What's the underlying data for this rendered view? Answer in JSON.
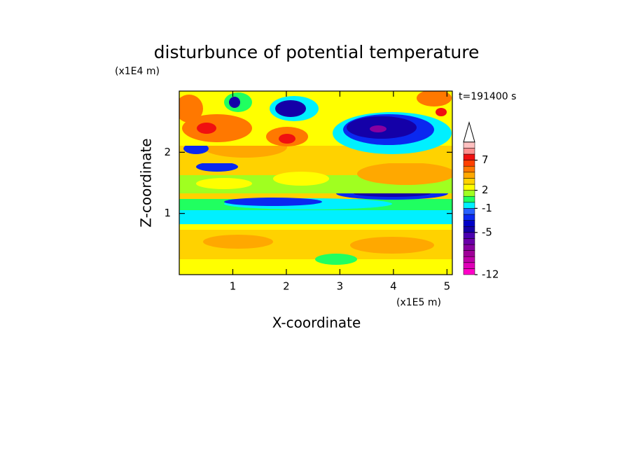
{
  "chart_data": {
    "type": "contour",
    "title": "disturbunce of potential temperature",
    "x_label": "X-coordinate",
    "y_label": "Z-coordinate",
    "x_unit": "(x1E5 m)",
    "y_unit": "(x1E4 m)",
    "time_label": "t=191400 s",
    "xlim": [
      0,
      5.1
    ],
    "ylim": [
      0,
      3.0
    ],
    "xticks": [
      1,
      2,
      3,
      4,
      5
    ],
    "yticks": [
      1,
      2
    ],
    "colorbar": {
      "clim": [
        -12,
        10
      ],
      "ticks": [
        -12,
        -5,
        -1,
        2,
        7
      ],
      "colors": [
        "#ff00c8",
        "#e000b8",
        "#c000a8",
        "#a00098",
        "#8800a0",
        "#6a00a8",
        "#4b00b0",
        "#1400a8",
        "#0000c8",
        "#0a28f0",
        "#2860ff",
        "#00f0ff",
        "#20ff60",
        "#a0ff20",
        "#ffff00",
        "#ffd200",
        "#ffa800",
        "#ff7800",
        "#ff4000",
        "#f01010",
        "#ff9090",
        "#ffc0c0"
      ]
    }
  }
}
